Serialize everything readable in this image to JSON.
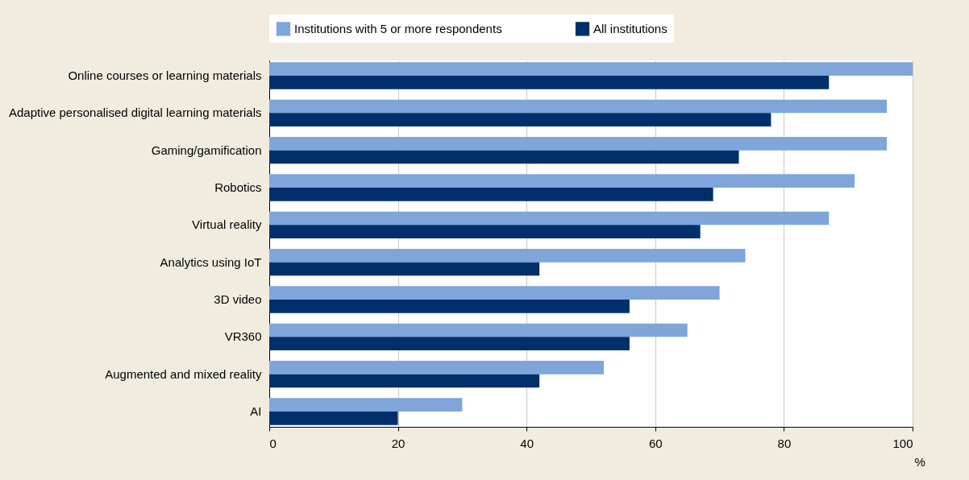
{
  "chart_data": {
    "type": "bar",
    "orientation": "horizontal",
    "xlabel": "%",
    "categories": [
      "Online courses or learning materials",
      "Adaptive personalised digital learning materials",
      "Gaming/gamification",
      "Robotics",
      "Virtual reality",
      "Analytics using IoT",
      "3D video",
      "VR360",
      "Augmented and mixed reality",
      "AI"
    ],
    "series": [
      {
        "name": "Institutions with 5 or more respondents",
        "color": "#7ea6da",
        "values": [
          100,
          96,
          96,
          91,
          87,
          74,
          70,
          65,
          52,
          30
        ]
      },
      {
        "name": "All institutions",
        "color": "#002f6c",
        "values": [
          87,
          78,
          73,
          69,
          67,
          42,
          56,
          56,
          42,
          20
        ]
      }
    ],
    "xlim": [
      0,
      100
    ],
    "xticks": [
      0,
      20,
      40,
      60,
      80,
      100
    ],
    "grid": "x",
    "legend": "top"
  }
}
